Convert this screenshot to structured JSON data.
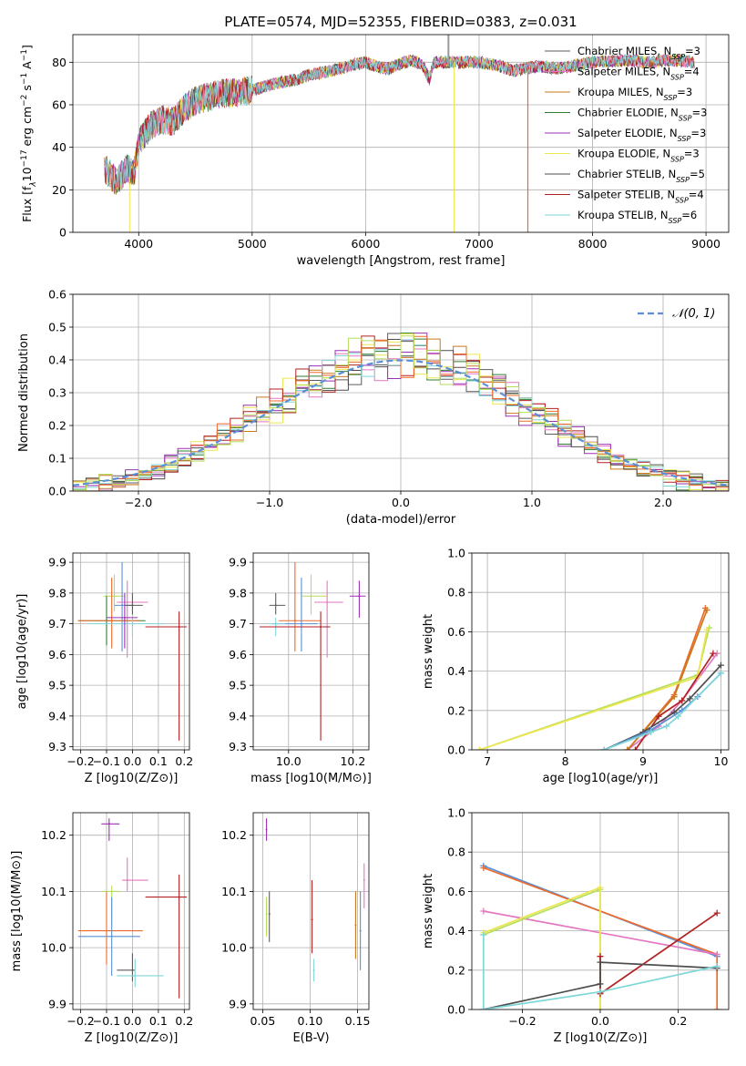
{
  "figure_title": "PLATE=0574, MJD=52355, FIBERID=0383, z=0.031",
  "colors": [
    "#5c5c5c",
    "#e377c2",
    "#c97a1e",
    "#2e7d32",
    "#9b30b5",
    "#ece64f",
    "#4d4d4d",
    "#b22222",
    "#7fd6d8",
    "#5b8fd6",
    "#ee6a2a",
    "#b5de5a"
  ],
  "chart_data": [
    {
      "id": "spectrum",
      "type": "line",
      "title": "PLATE=0574, MJD=52355, FIBERID=0383, z=0.031",
      "xlabel": "wavelength [Angstrom, rest frame]",
      "ylabel_parts": [
        "Flux [f",
        "λ",
        "10",
        "−17",
        " erg cm",
        "−2",
        " s",
        "−1",
        " A",
        "−1",
        "]"
      ],
      "xlim": [
        3420,
        9200
      ],
      "ylim": [
        0,
        93
      ],
      "xticks": [
        4000,
        5000,
        6000,
        7000,
        8000,
        9000
      ],
      "yticks": [
        0,
        20,
        40,
        60,
        80
      ],
      "continuum": [
        [
          3700,
          30
        ],
        [
          3800,
          24
        ],
        [
          3900,
          30
        ],
        [
          3960,
          28
        ],
        [
          4000,
          42
        ],
        [
          4100,
          50
        ],
        [
          4200,
          53
        ],
        [
          4300,
          52
        ],
        [
          4400,
          58
        ],
        [
          4500,
          62
        ],
        [
          4700,
          65
        ],
        [
          4900,
          66
        ],
        [
          5000,
          67
        ],
        [
          5200,
          70
        ],
        [
          5400,
          72
        ],
        [
          5500,
          74
        ],
        [
          5700,
          76
        ],
        [
          5900,
          79
        ],
        [
          6000,
          80
        ],
        [
          6100,
          78
        ],
        [
          6200,
          77
        ],
        [
          6300,
          79
        ],
        [
          6400,
          81
        ],
        [
          6500,
          79
        ],
        [
          6562,
          72
        ],
        [
          6600,
          80
        ],
        [
          6800,
          80
        ],
        [
          7000,
          80
        ],
        [
          7100,
          79
        ],
        [
          7200,
          78
        ],
        [
          7300,
          76
        ],
        [
          7500,
          78
        ],
        [
          7700,
          77
        ],
        [
          8000,
          80
        ],
        [
          8300,
          81
        ],
        [
          8500,
          80
        ],
        [
          8700,
          81
        ],
        [
          8900,
          80
        ]
      ],
      "legend": [
        {
          "label": "Chabrier MILES, N",
          "sub": "SSP",
          "eq": "=3"
        },
        {
          "label": "Salpeter MILES, N",
          "sub": "SSP",
          "eq": "=4"
        },
        {
          "label": "Kroupa MILES, N",
          "sub": "SSP",
          "eq": "=3"
        },
        {
          "label": "Chabrier ELODIE, N",
          "sub": "SSP",
          "eq": "=3"
        },
        {
          "label": "Salpeter ELODIE, N",
          "sub": "SSP",
          "eq": "=3"
        },
        {
          "label": "Kroupa ELODIE, N",
          "sub": "SSP",
          "eq": "=3"
        },
        {
          "label": "Chabrier STELIB, N",
          "sub": "SSP",
          "eq": "=5"
        },
        {
          "label": "Salpeter STELIB, N",
          "sub": "SSP",
          "eq": "=4"
        },
        {
          "label": "Kroupa STELIB, N",
          "sub": "SSP",
          "eq": "=6"
        }
      ]
    },
    {
      "id": "residuals",
      "type": "line",
      "xlabel": "(data-model)/error",
      "ylabel": "Normed distribution",
      "xlim": [
        -2.5,
        2.5
      ],
      "ylim": [
        0,
        0.6
      ],
      "xticks": [
        -2,
        -1,
        0,
        1,
        2
      ],
      "yticks": [
        0,
        0.1,
        0.2,
        0.3,
        0.4,
        0.5,
        0.6
      ],
      "legend_label": "𝒩(0, 1)",
      "normal_curve": {
        "mean": 0,
        "sigma": 1
      }
    },
    {
      "id": "z_age",
      "type": "scatter",
      "xlabel": "Z [log10(Z/Z⊙)]",
      "ylabel": "age [log10(age/yr)]",
      "xlim": [
        -0.23,
        0.22
      ],
      "ylim": [
        9.29,
        9.93
      ],
      "xticks": [
        -0.2,
        -0.1,
        0.0,
        0.1,
        0.2
      ],
      "yticks": [
        9.3,
        9.4,
        9.5,
        9.6,
        9.7,
        9.8,
        9.9
      ],
      "points": [
        {
          "x": -0.07,
          "y": 9.79,
          "xe": [
            -0.11,
            -0.03
          ],
          "ye": [
            9.74,
            9.86
          ],
          "c": 11
        },
        {
          "x": -0.04,
          "y": 9.76,
          "xe": [
            -0.07,
            0.0
          ],
          "ye": [
            9.61,
            9.9
          ],
          "c": 9
        },
        {
          "x": -0.02,
          "y": 9.77,
          "xe": [
            -0.06,
            0.06
          ],
          "ye": [
            9.59,
            9.84
          ],
          "c": 1
        },
        {
          "x": 0.0,
          "y": 9.76,
          "xe": [
            -0.03,
            0.04
          ],
          "ye": [
            9.73,
            9.8
          ],
          "c": 0
        },
        {
          "x": -0.1,
          "y": 9.71,
          "xe": [
            -0.21,
            0.05
          ],
          "ye": [
            9.63,
            9.79
          ],
          "c": 3
        },
        {
          "x": -0.08,
          "y": 9.71,
          "xe": [
            -0.21,
            0.03
          ],
          "ye": [
            9.62,
            9.85
          ],
          "c": 10
        },
        {
          "x": 0.0,
          "y": 9.7,
          "xe": [
            -0.17,
            0.12
          ],
          "ye": [
            9.66,
            9.72
          ],
          "c": 8
        },
        {
          "x": 0.18,
          "y": 9.69,
          "xe": [
            0.05,
            0.21
          ],
          "ye": [
            9.32,
            9.74
          ],
          "c": 7
        },
        {
          "x": -0.03,
          "y": 9.72,
          "xe": [
            -0.1,
            0.02
          ],
          "ye": [
            9.62,
            9.8
          ],
          "c": 4
        }
      ]
    },
    {
      "id": "mass_age",
      "type": "scatter",
      "xlabel": "mass [log10(M/M⊙)]",
      "ylabel": "",
      "xlim": [
        9.89,
        10.25
      ],
      "ylim": [
        9.29,
        9.93
      ],
      "xticks": [
        10.0,
        10.2
      ],
      "yticks": [
        9.3,
        9.4,
        9.5,
        9.6,
        9.7,
        9.8,
        9.9
      ],
      "points": [
        {
          "x": 9.96,
          "y": 9.76,
          "xe": [
            9.94,
            9.99
          ],
          "ye": [
            9.73,
            9.8
          ],
          "c": 0
        },
        {
          "x": 10.07,
          "y": 9.79,
          "xe": [
            10.04,
            10.12
          ],
          "ye": [
            9.73,
            9.86
          ],
          "c": 11
        },
        {
          "x": 10.12,
          "y": 9.77,
          "xe": [
            10.08,
            10.17
          ],
          "ye": [
            9.59,
            9.84
          ],
          "c": 1
        },
        {
          "x": 10.22,
          "y": 9.79,
          "xe": [
            10.19,
            10.24
          ],
          "ye": [
            9.72,
            9.84
          ],
          "c": 4
        },
        {
          "x": 10.02,
          "y": 9.71,
          "xe": [
            9.97,
            10.1
          ],
          "ye": [
            9.61,
            9.9
          ],
          "c": 10
        },
        {
          "x": 10.04,
          "y": 9.7,
          "xe": [
            9.95,
            10.09
          ],
          "ye": [
            9.61,
            9.85
          ],
          "c": 9
        },
        {
          "x": 9.96,
          "y": 9.7,
          "xe": [
            9.94,
            9.99
          ],
          "ye": [
            9.66,
            9.72
          ],
          "c": 8
        },
        {
          "x": 10.1,
          "y": 9.69,
          "xe": [
            9.91,
            10.13
          ],
          "ye": [
            9.32,
            9.74
          ],
          "c": 7
        }
      ]
    },
    {
      "id": "age_weight",
      "type": "line",
      "xlabel": "age [log10(age/yr)]",
      "ylabel": "mass weight",
      "xlim": [
        6.8,
        10.1
      ],
      "ylim": [
        0,
        1.0
      ],
      "xticks": [
        7,
        8,
        9,
        10
      ],
      "yticks": [
        0,
        0.2,
        0.4,
        0.6,
        0.8,
        1.0
      ],
      "series": [
        {
          "c": 1,
          "x": [
            8.8,
            9.2,
            9.5,
            9.95
          ],
          "y": [
            0.0,
            0.12,
            0.25,
            0.49
          ]
        },
        {
          "c": 10,
          "x": [
            8.8,
            9.4,
            9.8
          ],
          "y": [
            0.0,
            0.28,
            0.72
          ]
        },
        {
          "c": 2,
          "x": [
            8.8,
            9.4,
            9.82
          ],
          "y": [
            0.0,
            0.27,
            0.71
          ]
        },
        {
          "c": 11,
          "x": [
            6.9,
            9.7,
            9.85
          ],
          "y": [
            0.0,
            0.38,
            0.62
          ]
        },
        {
          "c": 5,
          "x": [
            6.9,
            9.7,
            9.82
          ],
          "y": [
            0.0,
            0.37,
            0.61
          ]
        },
        {
          "c": 7,
          "x": [
            8.9,
            9.2,
            9.5,
            9.9
          ],
          "y": [
            0.0,
            0.17,
            0.25,
            0.49
          ]
        },
        {
          "c": 6,
          "x": [
            8.5,
            9.0,
            9.4,
            9.6,
            10.0
          ],
          "y": [
            0.0,
            0.09,
            0.19,
            0.26,
            0.43
          ]
        },
        {
          "c": 9,
          "x": [
            8.5,
            9.1,
            9.5,
            9.7,
            10.0
          ],
          "y": [
            0.0,
            0.1,
            0.2,
            0.27,
            0.39
          ]
        },
        {
          "c": 8,
          "x": [
            8.5,
            9.1,
            9.3,
            9.45,
            10.0
          ],
          "y": [
            0.0,
            0.09,
            0.12,
            0.17,
            0.39
          ]
        }
      ]
    },
    {
      "id": "z_mass",
      "type": "scatter",
      "xlabel": "Z [log10(Z/Z⊙)]",
      "ylabel": "mass [log10(M/M⊙)]",
      "xlim": [
        -0.23,
        0.22
      ],
      "ylim": [
        9.89,
        10.24
      ],
      "xticks": [
        -0.2,
        -0.1,
        0.0,
        0.1,
        0.2
      ],
      "yticks": [
        9.9,
        10.0,
        10.1,
        10.2
      ],
      "points": [
        {
          "x": -0.09,
          "y": 10.22,
          "xe": [
            -0.12,
            -0.05
          ],
          "ye": [
            10.19,
            10.23
          ],
          "c": 4
        },
        {
          "x": -0.02,
          "y": 10.12,
          "xe": [
            -0.04,
            0.06
          ],
          "ye": [
            10.1,
            10.16
          ],
          "c": 1
        },
        {
          "x": -0.08,
          "y": 10.1,
          "xe": [
            -0.12,
            -0.05
          ],
          "ye": [
            10.04,
            10.11
          ],
          "c": 11
        },
        {
          "x": 0.18,
          "y": 10.09,
          "xe": [
            0.05,
            0.21
          ],
          "ye": [
            9.91,
            10.13
          ],
          "c": 7
        },
        {
          "x": -0.1,
          "y": 10.03,
          "xe": [
            -0.21,
            0.04
          ],
          "ye": [
            9.97,
            10.1
          ],
          "c": 10
        },
        {
          "x": -0.08,
          "y": 10.02,
          "xe": [
            -0.21,
            0.03
          ],
          "ye": [
            9.95,
            10.09
          ],
          "c": 9
        },
        {
          "x": 0.0,
          "y": 9.96,
          "xe": [
            -0.06,
            0.01
          ],
          "ye": [
            9.94,
            9.99
          ],
          "c": 0
        },
        {
          "x": 0.01,
          "y": 9.95,
          "xe": [
            -0.06,
            0.12
          ],
          "ye": [
            9.93,
            9.98
          ],
          "c": 8
        }
      ]
    },
    {
      "id": "ebv_mass",
      "type": "scatter",
      "xlabel": "E(B-V)",
      "ylabel": "",
      "xlim": [
        0.04,
        0.162
      ],
      "ylim": [
        9.89,
        10.24
      ],
      "xticks": [
        0.05,
        0.1,
        0.15
      ],
      "yticks": [
        9.9,
        10.0,
        10.1,
        10.2
      ],
      "points": [
        {
          "x": 0.054,
          "y": 10.21,
          "ye": [
            10.19,
            10.23
          ],
          "c": 4
        },
        {
          "x": 0.057,
          "y": 10.06,
          "ye": [
            10.01,
            10.1
          ],
          "c": 0
        },
        {
          "x": 0.054,
          "y": 10.06,
          "ye": [
            10.02,
            10.09
          ],
          "c": 11
        },
        {
          "x": 0.102,
          "y": 10.05,
          "ye": [
            9.99,
            10.12
          ],
          "c": 7
        },
        {
          "x": 0.104,
          "y": 9.96,
          "ye": [
            9.94,
            9.98
          ],
          "c": 8
        },
        {
          "x": 0.148,
          "y": 10.04,
          "ye": [
            9.98,
            10.1
          ],
          "c": 2
        },
        {
          "x": 0.153,
          "y": 10.03,
          "ye": [
            9.96,
            10.1
          ],
          "c": 9
        },
        {
          "x": 0.157,
          "y": 10.12,
          "ye": [
            10.07,
            10.15
          ],
          "c": 1
        }
      ]
    },
    {
      "id": "z_weight",
      "type": "line",
      "xlabel": "Z [log10(Z/Z⊙)]",
      "ylabel": "mass weight",
      "xlim": [
        -0.33,
        0.33
      ],
      "ylim": [
        0,
        1.0
      ],
      "xticks": [
        -0.2,
        0.0,
        0.2
      ],
      "yticks": [
        0,
        0.2,
        0.4,
        0.6,
        0.8,
        1.0
      ],
      "series": [
        {
          "c": 9,
          "x": [
            -0.3,
            0.3
          ],
          "y": [
            0.73,
            0.27
          ]
        },
        {
          "c": 10,
          "x": [
            -0.3,
            0.3,
            0.3
          ],
          "y": [
            0.72,
            0.28,
            0.0
          ]
        },
        {
          "c": 1,
          "x": [
            -0.3,
            0.3
          ],
          "y": [
            0.5,
            0.28
          ]
        },
        {
          "c": 11,
          "x": [
            -0.3,
            0.0,
            0.0
          ],
          "y": [
            0.38,
            0.61,
            0.0
          ]
        },
        {
          "c": 5,
          "x": [
            -0.3,
            0.0,
            0.0
          ],
          "y": [
            0.39,
            0.62,
            0.0
          ]
        },
        {
          "c": 7,
          "x": [
            0.0,
            0.0,
            0.3
          ],
          "y": [
            0.27,
            0.08,
            0.49
          ]
        },
        {
          "c": 6,
          "x": [
            -0.3,
            0.0,
            0.0,
            0.3
          ],
          "y": [
            0.0,
            0.13,
            0.24,
            0.21
          ]
        },
        {
          "c": 8,
          "x": [
            -0.3,
            -0.3,
            0.0,
            0.3
          ],
          "y": [
            0.38,
            0.0,
            0.09,
            0.22
          ]
        }
      ]
    }
  ]
}
